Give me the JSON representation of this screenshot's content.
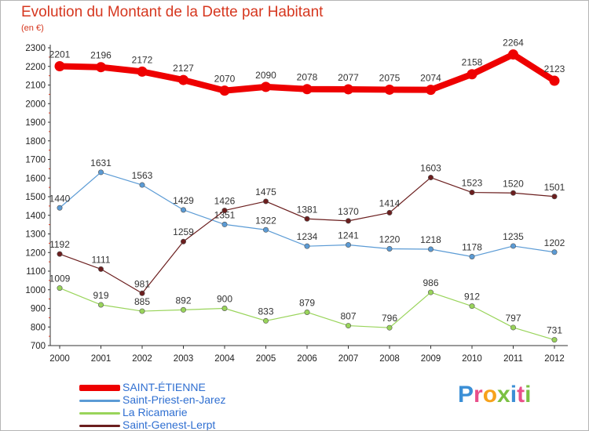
{
  "title": "Evolution du Montant de la Dette par Habitant",
  "subtitle": "(en €)",
  "brand": {
    "text": "Proxiti",
    "letter_colors": [
      "#3b8fd6",
      "#e94f8a",
      "#f7a21b",
      "#7bc043",
      "#3b8fd6",
      "#e94f8a",
      "#7bc043"
    ]
  },
  "chart_data": {
    "type": "line",
    "x": [
      "2000",
      "2001",
      "2002",
      "2003",
      "2004",
      "2005",
      "2006",
      "2007",
      "2008",
      "2009",
      "2010",
      "2011",
      "2012"
    ],
    "y_ticks": [
      "700",
      "800",
      "900",
      "1000",
      "1100",
      "1200",
      "1300",
      "1400",
      "1500",
      "1600",
      "1700",
      "1800",
      "1900",
      "2000",
      "2100",
      "2200",
      "2300"
    ],
    "ylim": [
      700,
      2300
    ],
    "grid": false,
    "legend_position": "bottom-left",
    "series": [
      {
        "name": "SAINT-ÉTIENNE",
        "color": "#ee0000",
        "values": [
          2201,
          2196,
          2172,
          2127,
          2070,
          2090,
          2078,
          2077,
          2075,
          2074,
          2158,
          2264,
          2123
        ],
        "labels": [
          "2201",
          "2196",
          "2172",
          "2127",
          "2070",
          "2090",
          "2078",
          "2077",
          "2075",
          "2074",
          "2158",
          "2264",
          "2123"
        ]
      },
      {
        "name": "Saint-Priest-en-Jarez",
        "color": "#5b9bd5",
        "values": [
          1440,
          1631,
          1563,
          1429,
          1351,
          1322,
          1234,
          1241,
          1220,
          1218,
          1178,
          1235,
          1202
        ],
        "labels": [
          "1440",
          "1631",
          "1563",
          "1429",
          "1351",
          "1322",
          "1234",
          "1241",
          "1220",
          "1218",
          "1178",
          "1235",
          "1202"
        ]
      },
      {
        "name": "La Ricamarie",
        "color": "#99d45a",
        "values": [
          1009,
          919,
          885,
          892,
          900,
          833,
          879,
          807,
          796,
          986,
          912,
          797,
          731
        ],
        "labels": [
          "1009",
          "919",
          "885",
          "892",
          "900",
          "833",
          "879",
          "807",
          "796",
          "986",
          "912",
          "797",
          "731"
        ]
      },
      {
        "name": "Saint-Genest-Lerpt",
        "color": "#6b1e1e",
        "values": [
          1192,
          1111,
          981,
          1259,
          1426,
          1475,
          1381,
          1370,
          1414,
          1603,
          1523,
          1520,
          1501
        ],
        "labels": [
          "1192",
          "1111",
          "981",
          "1259",
          "1426",
          "1475",
          "1381",
          "1370",
          "1414",
          "1603",
          "1523",
          "1520",
          "1501"
        ]
      }
    ]
  }
}
